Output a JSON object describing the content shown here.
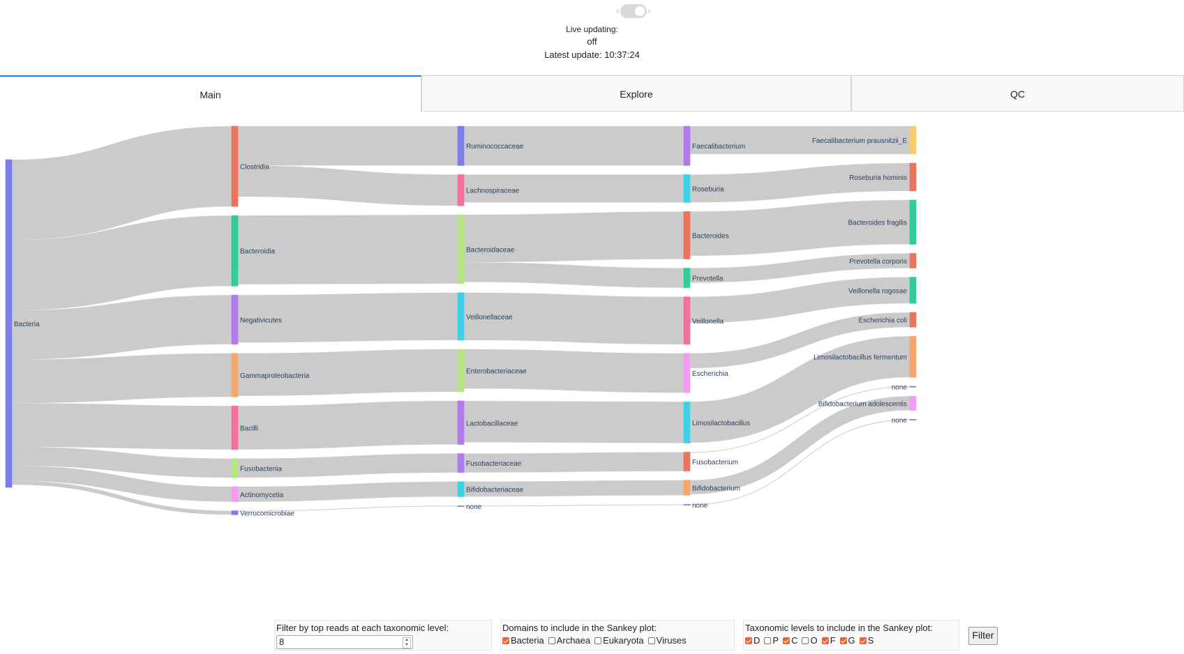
{
  "header": {
    "live_label": "Live updating:",
    "live_state": "off",
    "latest_update": "Latest update: 10:37:24"
  },
  "tabs": [
    {
      "label": "Main",
      "active": true
    },
    {
      "label": "Explore",
      "active": false
    },
    {
      "label": "QC",
      "active": false
    }
  ],
  "sankey": {
    "link_color": "#c8c8c8",
    "label_color": "#2a3f5f",
    "columns": [
      [
        {
          "label": "Bacteria",
          "value": 100,
          "color": "#7c7ee8"
        }
      ],
      [
        {
          "label": "Clostridia",
          "value": 24.5,
          "color": "#e8765f"
        },
        {
          "label": "Bacteroidia",
          "value": 21.5,
          "color": "#33cc99"
        },
        {
          "label": "Negativicutes",
          "value": 15,
          "color": "#b07ae8"
        },
        {
          "label": "Gammaproteobacteria",
          "value": 13.3,
          "color": "#f5a66a"
        },
        {
          "label": "Bacilli",
          "value": 13.3,
          "color": "#f0719a"
        },
        {
          "label": "Fusobacteriia",
          "value": 5.8,
          "color": "#b7e286"
        },
        {
          "label": "Actinomycetia",
          "value": 4.6,
          "color": "#f29ef0"
        },
        {
          "label": "Verrucomicrobiae",
          "value": 1.2,
          "color": "#7c7ee8"
        }
      ],
      [
        {
          "label": "Ruminococcaceae",
          "value": 12,
          "color": "#7c7ee8"
        },
        {
          "label": "Lachnospiraceae",
          "value": 9.5,
          "color": "#f0719a"
        },
        {
          "label": "Bacteroidaceae",
          "value": 21,
          "color": "#b7e286"
        },
        {
          "label": "Veillonellaceae",
          "value": 14.5,
          "color": "#3fd0e8"
        },
        {
          "label": "Enterobacteriaceae",
          "value": 13,
          "color": "#b7e286"
        },
        {
          "label": "Lactobacillaceae",
          "value": 13.3,
          "color": "#b07ae8"
        },
        {
          "label": "Fusobacteriaceae",
          "value": 5.8,
          "color": "#b07ae8"
        },
        {
          "label": "Bifidobacteriaceae",
          "value": 4.6,
          "color": "#3fd0e8"
        },
        {
          "label": "none",
          "value": 0.2,
          "color": "#7c7ee8"
        }
      ],
      [
        {
          "label": "Faecalibacterium",
          "value": 12,
          "color": "#b07ae8"
        },
        {
          "label": "Roseburia",
          "value": 8.5,
          "color": "#3fd0e8"
        },
        {
          "label": "Bacteroides",
          "value": 14.5,
          "color": "#e8765f"
        },
        {
          "label": "Prevotella",
          "value": 6,
          "color": "#33cc99"
        },
        {
          "label": "Veillonella",
          "value": 14.5,
          "color": "#f0719a"
        },
        {
          "label": "Escherichia",
          "value": 12,
          "color": "#f29ef0"
        },
        {
          "label": "Limosilactobacillus",
          "value": 12.6,
          "color": "#3fd0e8"
        },
        {
          "label": "Fusobacterium",
          "value": 5.8,
          "color": "#e8765f"
        },
        {
          "label": "Bifidobacterium",
          "value": 4.6,
          "color": "#f5a66a"
        },
        {
          "label": "none",
          "value": 0.2,
          "color": "#7c7ee8"
        }
      ],
      [
        {
          "label": "Faecalibacterium prausnitzii_E",
          "value": 8.5,
          "color": "#f9cd6b"
        },
        {
          "label": "Roseburia hominis",
          "value": 8.5,
          "color": "#e8765f"
        },
        {
          "label": "Bacteroides fragilis",
          "value": 13.5,
          "color": "#33cc99"
        },
        {
          "label": "Prevotella corporis",
          "value": 4.5,
          "color": "#e8765f"
        },
        {
          "label": "Veillonella rogosae",
          "value": 8,
          "color": "#33cc99"
        },
        {
          "label": "Escherichia coli",
          "value": 4.5,
          "color": "#e8765f"
        },
        {
          "label": "Limosilactobacillus fermentum",
          "value": 12.5,
          "color": "#f5a66a"
        },
        {
          "label": "none",
          "value": 0.2,
          "color": "#7c7ee8"
        },
        {
          "label": "Bifidobacterium adolescentis",
          "value": 4.3,
          "color": "#f29ef0"
        },
        {
          "label": "none",
          "value": 0.2,
          "color": "#7c7ee8"
        }
      ]
    ],
    "links": [
      {
        "from": [
          0,
          0
        ],
        "to": [
          1,
          0
        ],
        "value": 24.5
      },
      {
        "from": [
          0,
          0
        ],
        "to": [
          1,
          1
        ],
        "value": 21.5
      },
      {
        "from": [
          0,
          0
        ],
        "to": [
          1,
          2
        ],
        "value": 15
      },
      {
        "from": [
          0,
          0
        ],
        "to": [
          1,
          3
        ],
        "value": 13.3
      },
      {
        "from": [
          0,
          0
        ],
        "to": [
          1,
          4
        ],
        "value": 13.3
      },
      {
        "from": [
          0,
          0
        ],
        "to": [
          1,
          5
        ],
        "value": 5.8
      },
      {
        "from": [
          0,
          0
        ],
        "to": [
          1,
          6
        ],
        "value": 4.6
      },
      {
        "from": [
          0,
          0
        ],
        "to": [
          1,
          7
        ],
        "value": 1.2
      },
      {
        "from": [
          1,
          0
        ],
        "to": [
          2,
          0
        ],
        "value": 12
      },
      {
        "from": [
          1,
          0
        ],
        "to": [
          2,
          1
        ],
        "value": 9.5
      },
      {
        "from": [
          1,
          1
        ],
        "to": [
          2,
          2
        ],
        "value": 21
      },
      {
        "from": [
          1,
          2
        ],
        "to": [
          2,
          3
        ],
        "value": 14.5
      },
      {
        "from": [
          1,
          3
        ],
        "to": [
          2,
          4
        ],
        "value": 13
      },
      {
        "from": [
          1,
          4
        ],
        "to": [
          2,
          5
        ],
        "value": 13.3
      },
      {
        "from": [
          1,
          5
        ],
        "to": [
          2,
          6
        ],
        "value": 5.8
      },
      {
        "from": [
          1,
          6
        ],
        "to": [
          2,
          7
        ],
        "value": 4.6
      },
      {
        "from": [
          1,
          7
        ],
        "to": [
          2,
          8
        ],
        "value": 0.2
      },
      {
        "from": [
          2,
          0
        ],
        "to": [
          3,
          0
        ],
        "value": 12
      },
      {
        "from": [
          2,
          1
        ],
        "to": [
          3,
          1
        ],
        "value": 8.5
      },
      {
        "from": [
          2,
          2
        ],
        "to": [
          3,
          2
        ],
        "value": 14.5
      },
      {
        "from": [
          2,
          2
        ],
        "to": [
          3,
          3
        ],
        "value": 6
      },
      {
        "from": [
          2,
          3
        ],
        "to": [
          3,
          4
        ],
        "value": 14.5
      },
      {
        "from": [
          2,
          4
        ],
        "to": [
          3,
          5
        ],
        "value": 12
      },
      {
        "from": [
          2,
          5
        ],
        "to": [
          3,
          6
        ],
        "value": 12.6
      },
      {
        "from": [
          2,
          6
        ],
        "to": [
          3,
          7
        ],
        "value": 5.8
      },
      {
        "from": [
          2,
          7
        ],
        "to": [
          3,
          8
        ],
        "value": 4.6
      },
      {
        "from": [
          2,
          8
        ],
        "to": [
          3,
          9
        ],
        "value": 0.2
      },
      {
        "from": [
          3,
          0
        ],
        "to": [
          4,
          0
        ],
        "value": 8.5
      },
      {
        "from": [
          3,
          1
        ],
        "to": [
          4,
          1
        ],
        "value": 8.5
      },
      {
        "from": [
          3,
          2
        ],
        "to": [
          4,
          2
        ],
        "value": 13.5
      },
      {
        "from": [
          3,
          3
        ],
        "to": [
          4,
          3
        ],
        "value": 4.5
      },
      {
        "from": [
          3,
          4
        ],
        "to": [
          4,
          4
        ],
        "value": 8
      },
      {
        "from": [
          3,
          5
        ],
        "to": [
          4,
          5
        ],
        "value": 4.5
      },
      {
        "from": [
          3,
          6
        ],
        "to": [
          4,
          6
        ],
        "value": 12.5
      },
      {
        "from": [
          3,
          7
        ],
        "to": [
          4,
          7
        ],
        "value": 0.2
      },
      {
        "from": [
          3,
          8
        ],
        "to": [
          4,
          8
        ],
        "value": 4.3
      },
      {
        "from": [
          3,
          9
        ],
        "to": [
          4,
          9
        ],
        "value": 0.2
      }
    ]
  },
  "controls": {
    "top_reads": {
      "label": "Filter by top reads at each taxonomic level:",
      "value": "8"
    },
    "domains": {
      "label": "Domains to include in the Sankey plot:",
      "options": [
        {
          "label": "Bacteria",
          "checked": true
        },
        {
          "label": "Archaea",
          "checked": false
        },
        {
          "label": "Eukaryota",
          "checked": false
        },
        {
          "label": "Viruses",
          "checked": false
        }
      ]
    },
    "levels": {
      "label": "Taxonomic levels to include in the Sankey plot:",
      "options": [
        {
          "label": "D",
          "checked": true
        },
        {
          "label": "P",
          "checked": false
        },
        {
          "label": "C",
          "checked": true
        },
        {
          "label": "O",
          "checked": false
        },
        {
          "label": "F",
          "checked": true
        },
        {
          "label": "G",
          "checked": true
        },
        {
          "label": "S",
          "checked": true
        }
      ]
    },
    "filter_label": "Filter"
  }
}
